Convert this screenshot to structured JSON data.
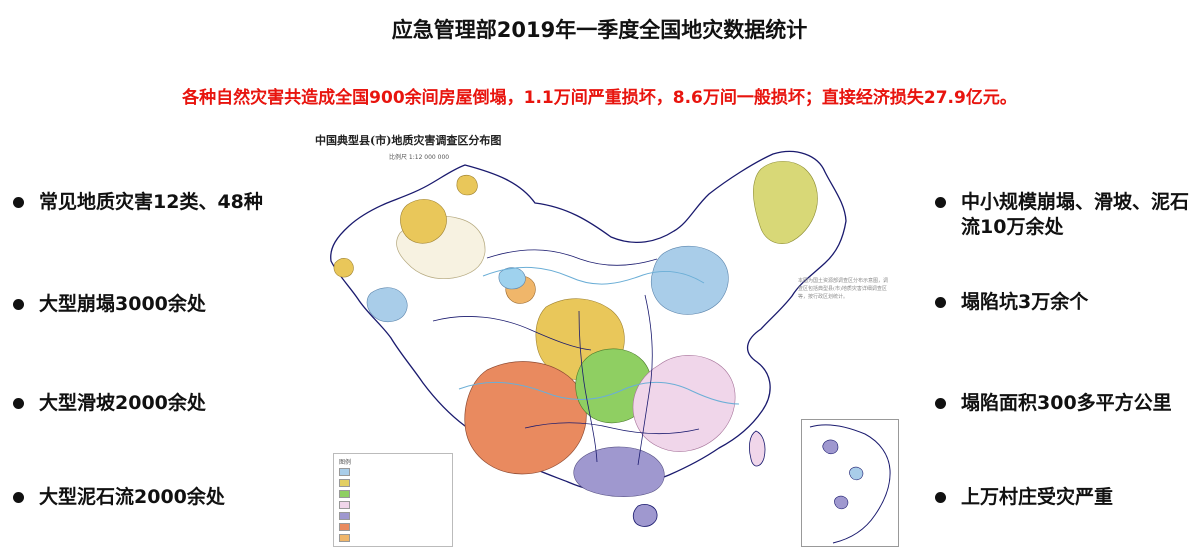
{
  "title": "应急管理部2019年一季度全国地灾数据统计",
  "subtitle": "各种自然灾害共造成全国900余间房屋倒塌，1.1万间严重损坏，8.6万间一般损坏；直接经济损失27.9亿元。",
  "left_points": [
    "常见地质灾害12类、48种",
    "大型崩塌3000余处",
    "大型滑坡2000余处",
    "大型泥石流2000余处"
  ],
  "right_points": [
    "中小规模崩塌、滑坡、泥石流10万余处",
    "塌陷坑3万余个",
    "塌陷面积300多平方公里",
    "上万村庄受灾严重"
  ],
  "map": {
    "title": "中国典型县(市)地质灾害调查区分布图",
    "scale": "比例尺 1:12 000 000",
    "legend_heading": "图例",
    "legend": [
      {
        "color": "#a9cde9"
      },
      {
        "color": "#e3cf63"
      },
      {
        "color": "#8fcf62"
      },
      {
        "color": "#f0d6ea"
      },
      {
        "color": "#9f98cf"
      },
      {
        "color": "#e98a5f"
      },
      {
        "color": "#f0b66a"
      }
    ],
    "note": "本图为国土资源部调查区分布示意图，调查区包括典型县(市)地质灾害详细调查区等，按行政区划统计。",
    "colors": {
      "base": "#ffffff",
      "border": "#1a1a6e",
      "water": "#9fd2ee",
      "southwest": "#e98a5f",
      "loess": "#e9c75a",
      "north": "#a9cde9",
      "south": "#9f98cf",
      "central": "#8fcf62",
      "east": "#f0d6ea",
      "northeast": "#d8d877"
    }
  }
}
